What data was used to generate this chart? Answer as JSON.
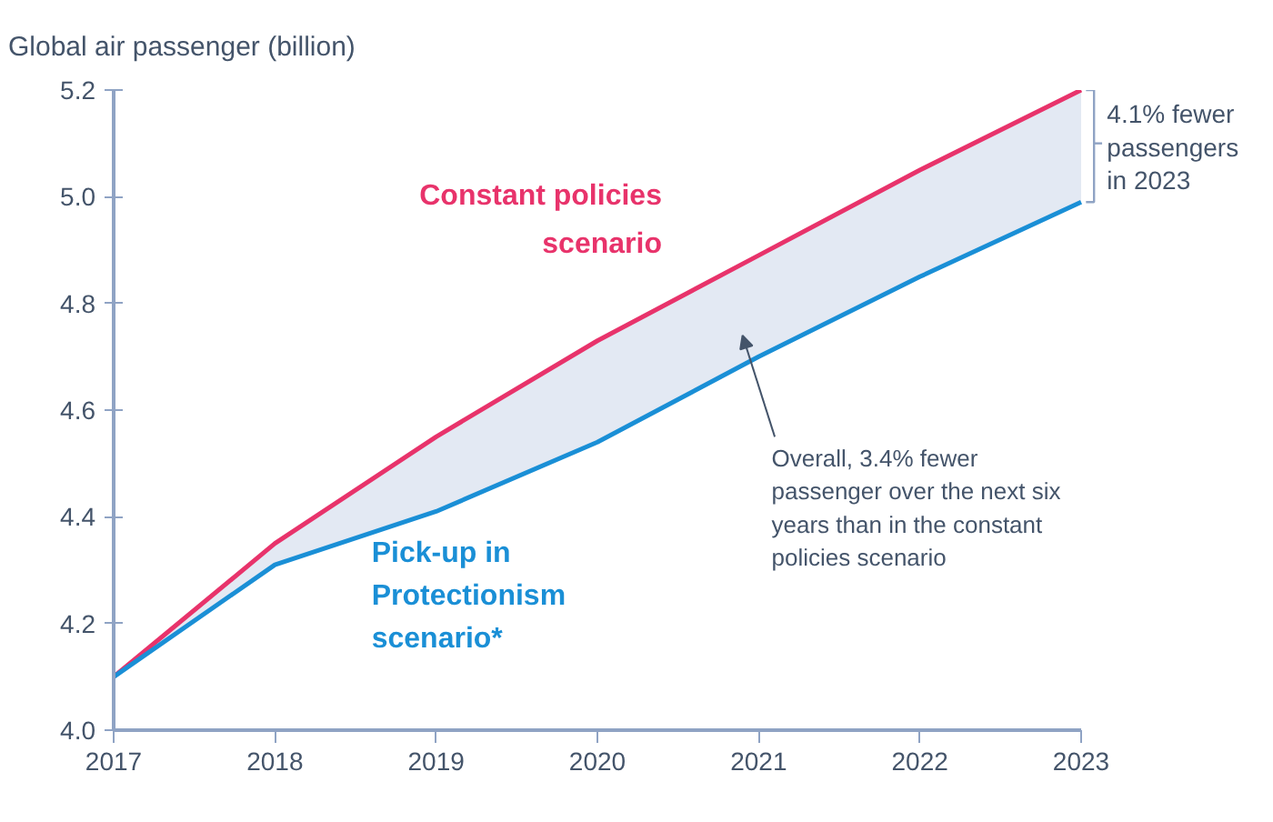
{
  "chart_data": {
    "type": "line",
    "ylabel": "Global air passenger (billion)",
    "x": [
      2017,
      2018,
      2019,
      2020,
      2021,
      2022,
      2023
    ],
    "series": [
      {
        "name": "Constant policies scenario",
        "color": "#e8336b",
        "values": [
          4.1,
          4.35,
          4.55,
          4.73,
          4.89,
          5.05,
          5.2
        ],
        "lower": [
          4.1,
          4.31,
          4.41,
          4.54,
          4.7,
          4.85,
          4.99
        ],
        "upper": [
          4.1,
          4.35,
          4.55,
          4.73,
          4.89,
          5.05,
          5.2
        ]
      },
      {
        "name": "Pick-up in Protectionism scenario*",
        "color": "#1a8fd6",
        "values": [
          4.1,
          4.31,
          4.41,
          4.54,
          4.7,
          4.85,
          4.99
        ]
      }
    ],
    "xlim": [
      2017,
      2023
    ],
    "xticks": [
      2017,
      2018,
      2019,
      2020,
      2021,
      2022,
      2023
    ],
    "ylim": [
      4.0,
      5.2
    ],
    "yticks": [
      {
        "value": 4.0,
        "label": "4.0"
      },
      4.2,
      4.4,
      4.6,
      4.8,
      {
        "value": 5.0,
        "label": "5.0"
      },
      5.2
    ],
    "annotations": [
      {
        "text": "4.1% fewer passengers in 2023",
        "x": 2023,
        "y": 5.1
      },
      "Overall, 3.4% fewer passenger over the next six years than in the constant policies scenario"
    ],
    "grid": false,
    "marker": "none",
    "line_style": "solid"
  }
}
